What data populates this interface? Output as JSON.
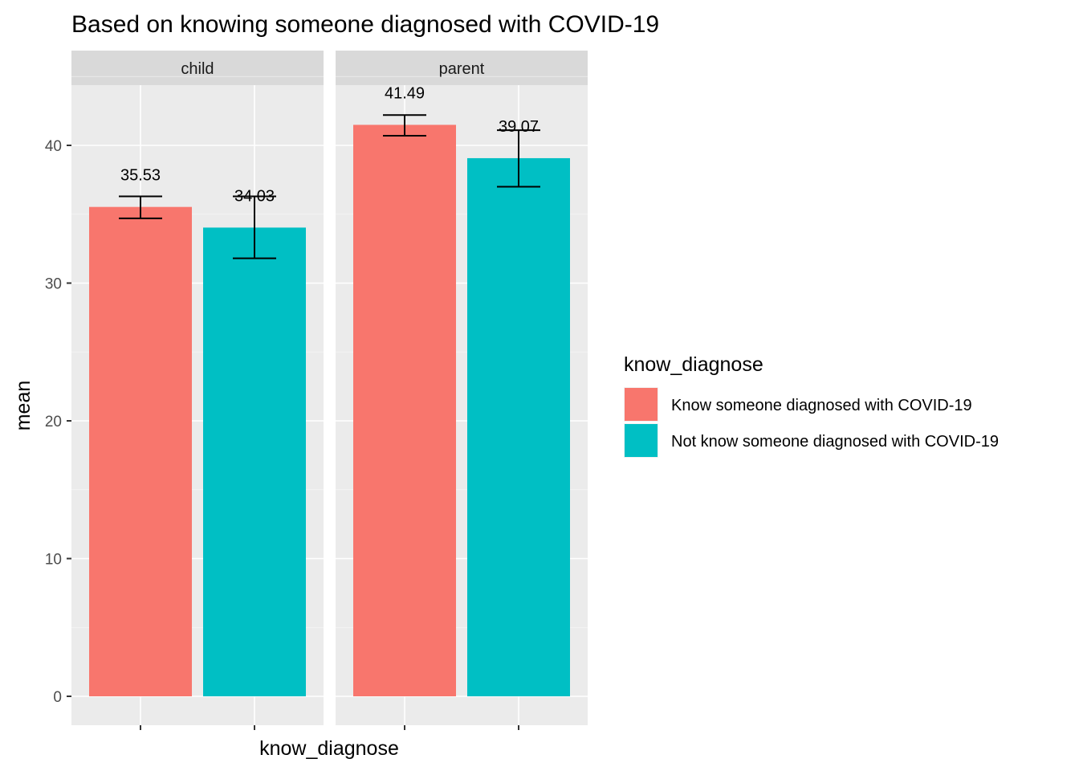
{
  "chart_data": {
    "type": "bar",
    "title": "Based on knowing someone diagnosed with COVID-19",
    "xlabel": "know_diagnose",
    "ylabel": "mean",
    "ylim": [
      0,
      45
    ],
    "yticks": [
      0,
      10,
      20,
      30,
      40
    ],
    "grid": true,
    "facets": [
      {
        "label": "child",
        "bars": [
          {
            "group": "Know someone diagnosed with COVID-19",
            "value": 35.53,
            "label": "35.53",
            "err_low": 34.7,
            "err_high": 36.3
          },
          {
            "group": "Not know someone diagnosed with COVID-19",
            "value": 34.03,
            "label": "34.03",
            "err_low": 31.8,
            "err_high": 36.3
          }
        ]
      },
      {
        "label": "parent",
        "bars": [
          {
            "group": "Know someone diagnosed with COVID-19",
            "value": 41.49,
            "label": "41.49",
            "err_low": 40.7,
            "err_high": 42.2
          },
          {
            "group": "Not know someone diagnosed with COVID-19",
            "value": 39.07,
            "label": "39.07",
            "err_low": 37.0,
            "err_high": 41.1
          }
        ]
      }
    ],
    "legend": {
      "title": "know_diagnose",
      "position": "right",
      "items": [
        {
          "label": "Know someone diagnosed with COVID-19",
          "color": "#F8766D"
        },
        {
          "label": "Not know someone diagnosed with COVID-19",
          "color": "#00BFC4"
        }
      ]
    },
    "colors": {
      "panel_bg": "#EBEBEB",
      "strip_bg": "#D9D9D9",
      "grid": "#FFFFFF"
    }
  }
}
